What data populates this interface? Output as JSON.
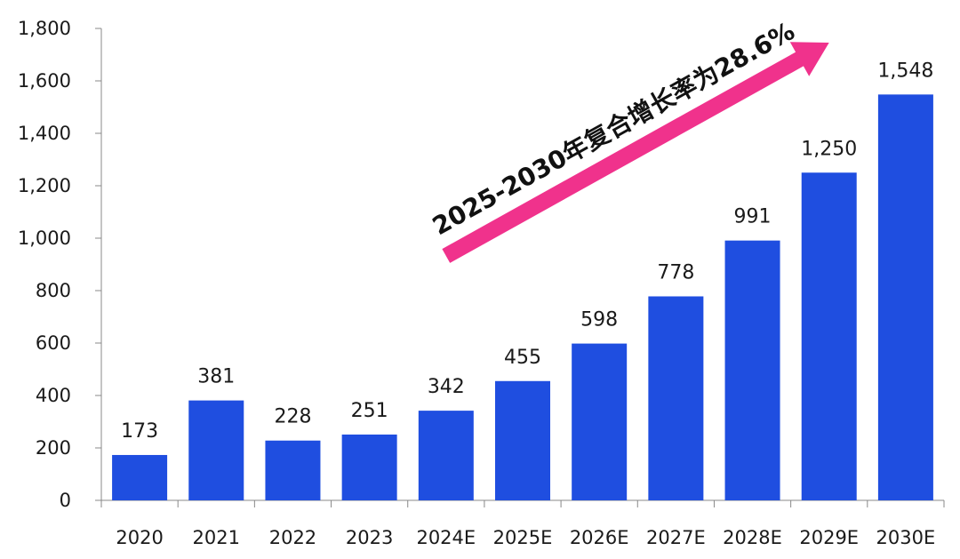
{
  "chart_data": {
    "type": "bar",
    "title": "",
    "xlabel": "",
    "ylabel": "",
    "categories": [
      "2020",
      "2021",
      "2022",
      "2023",
      "2024E",
      "2025E",
      "2026E",
      "2027E",
      "2028E",
      "2029E",
      "2030E"
    ],
    "values": [
      173,
      381,
      228,
      251,
      342,
      455,
      598,
      778,
      991,
      1250,
      1548
    ],
    "value_labels": [
      "173",
      "381",
      "228",
      "251",
      "342",
      "455",
      "598",
      "778",
      "991",
      "1,250",
      "1,548"
    ],
    "ylim": [
      0,
      1800
    ],
    "yticks": [
      0,
      200,
      400,
      600,
      800,
      1000,
      1200,
      1400,
      1600,
      1800
    ],
    "ytick_labels": [
      "0",
      "200",
      "400",
      "600",
      "800",
      "1,000",
      "1,200",
      "1,400",
      "1,600",
      "1,800"
    ],
    "grid": false,
    "legend": "none",
    "bar_color": "#1f4ee0",
    "annotation": {
      "text": "2025-2030年复合增长率为28.6%",
      "arrow_color": "#f0328c",
      "from_category": "2024E",
      "to_category": "2029E"
    }
  }
}
